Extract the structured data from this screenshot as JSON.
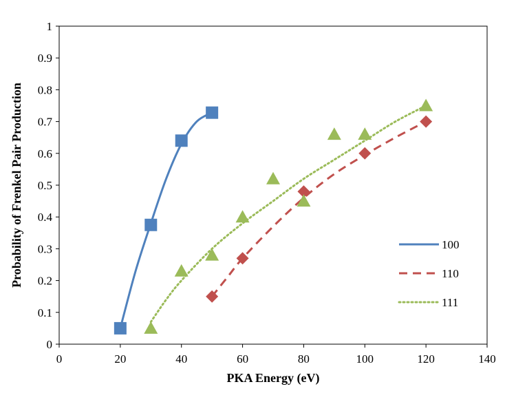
{
  "chart_data": {
    "type": "scatter",
    "xlabel": "PKA Energy (eV)",
    "ylabel": "Probability of Frenkel Pair Production",
    "xlim": [
      0,
      140
    ],
    "ylim": [
      0,
      1
    ],
    "x_ticks": [
      "0",
      "20",
      "40",
      "60",
      "80",
      "100",
      "120",
      "140"
    ],
    "y_ticks": [
      "0",
      "0.1",
      "0.2",
      "0.3",
      "0.4",
      "0.5",
      "0.6",
      "0.7",
      "0.8",
      "0.9",
      "1"
    ],
    "grid": false,
    "legend_position": "right",
    "series": [
      {
        "name": "100",
        "color": "#4f81bd",
        "marker": "square",
        "line_style": "solid",
        "x": [
          20,
          30,
          40,
          50
        ],
        "y": [
          0.05,
          0.375,
          0.64,
          0.728
        ],
        "trend_x": [
          20,
          25,
          30,
          35,
          40,
          45,
          50
        ],
        "trend_y": [
          0.05,
          0.23,
          0.38,
          0.52,
          0.63,
          0.7,
          0.728
        ]
      },
      {
        "name": "110",
        "color": "#c0504d",
        "marker": "diamond",
        "line_style": "dashed",
        "x": [
          50,
          60,
          80,
          100,
          120
        ],
        "y": [
          0.15,
          0.27,
          0.48,
          0.6,
          0.7
        ],
        "trend_x": [
          50,
          55,
          60,
          70,
          80,
          90,
          100,
          110,
          120
        ],
        "trend_y": [
          0.15,
          0.21,
          0.27,
          0.37,
          0.46,
          0.535,
          0.595,
          0.65,
          0.7
        ]
      },
      {
        "name": "111",
        "color": "#9bbb59",
        "marker": "triangle",
        "line_style": "dotted",
        "x": [
          30,
          40,
          50,
          60,
          70,
          80,
          90,
          100,
          120
        ],
        "y": [
          0.05,
          0.23,
          0.28,
          0.4,
          0.52,
          0.45,
          0.66,
          0.66,
          0.75
        ],
        "trend_x": [
          30,
          35,
          40,
          50,
          60,
          70,
          80,
          90,
          100,
          110,
          120
        ],
        "trend_y": [
          0.07,
          0.14,
          0.2,
          0.3,
          0.38,
          0.45,
          0.52,
          0.58,
          0.64,
          0.7,
          0.75
        ]
      }
    ]
  }
}
